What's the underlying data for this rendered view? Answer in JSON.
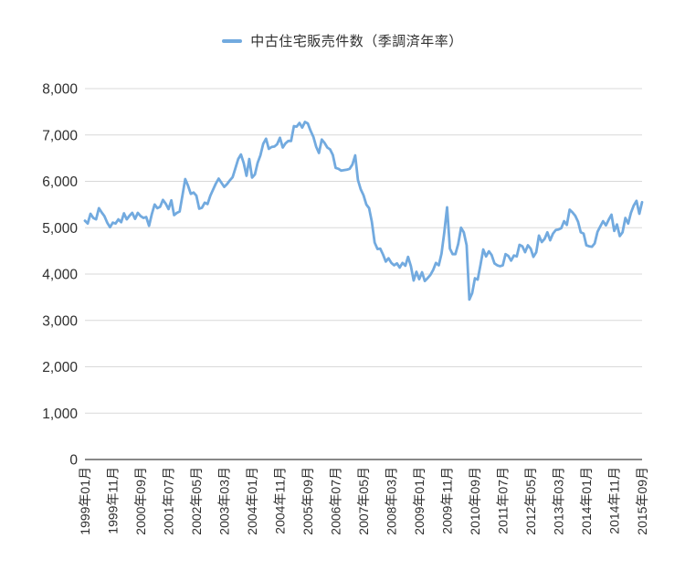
{
  "legend": {
    "label": "中古住宅販売件数（季調済年率）",
    "marker_color": "#72AADF"
  },
  "colors": {
    "line": "#72AADF",
    "grid": "#d9d9d9",
    "axis": "#404040",
    "text": "#2e2e2e",
    "background": "#ffffff"
  },
  "chart_data": {
    "type": "line",
    "title": "",
    "xlabel": "",
    "ylabel": "",
    "x_start": "1999年01月",
    "x_end": "2015年09月",
    "x_interval_months": 1,
    "x_tick_every_months": 10,
    "x_tick_labels": [
      "1999年01月",
      "1999年11月",
      "2000年09月",
      "2001年07月",
      "2002年05月",
      "2003年03月",
      "2004年01月",
      "2004年11月",
      "2005年09月",
      "2006年07月",
      "2007年05月",
      "2008年03月",
      "2009年01月",
      "2009年11月",
      "2010年09月",
      "2011年07月",
      "2012年05月",
      "2013年03月",
      "2014年01月",
      "2014年11月",
      "2015年09月"
    ],
    "ylim": [
      0,
      8000
    ],
    "y_ticks": [
      0,
      1000,
      2000,
      3000,
      4000,
      5000,
      6000,
      7000,
      8000
    ],
    "y_tick_labels": [
      "0",
      "1,000",
      "2,000",
      "3,000",
      "4,000",
      "5,000",
      "6,000",
      "7,000",
      "8,000"
    ],
    "grid": "horizontal",
    "legend_position": "top-center",
    "series": [
      {
        "name": "中古住宅販売件数（季調済年率）",
        "color": "#72AADF",
        "values": [
          5150,
          5090,
          5300,
          5210,
          5180,
          5420,
          5330,
          5250,
          5110,
          5010,
          5110,
          5090,
          5180,
          5120,
          5310,
          5180,
          5260,
          5320,
          5190,
          5320,
          5250,
          5210,
          5230,
          5040,
          5290,
          5500,
          5420,
          5450,
          5600,
          5520,
          5400,
          5590,
          5270,
          5320,
          5350,
          5700,
          6050,
          5910,
          5730,
          5760,
          5690,
          5410,
          5430,
          5540,
          5510,
          5690,
          5820,
          5950,
          6060,
          5970,
          5880,
          5940,
          6020,
          6090,
          6280,
          6480,
          6580,
          6390,
          6120,
          6480,
          6080,
          6150,
          6400,
          6560,
          6810,
          6920,
          6700,
          6740,
          6750,
          6800,
          6940,
          6730,
          6820,
          6870,
          6870,
          7190,
          7180,
          7260,
          7160,
          7280,
          7250,
          7090,
          6960,
          6750,
          6610,
          6900,
          6830,
          6730,
          6690,
          6570,
          6290,
          6270,
          6230,
          6240,
          6250,
          6270,
          6360,
          6560,
          6030,
          5830,
          5700,
          5500,
          5420,
          5130,
          4680,
          4540,
          4550,
          4420,
          4270,
          4340,
          4240,
          4190,
          4230,
          4140,
          4240,
          4180,
          4370,
          4170,
          3860,
          4050,
          3890,
          4040,
          3850,
          3910,
          3980,
          4090,
          4240,
          4190,
          4440,
          4890,
          5440,
          4550,
          4430,
          4430,
          4650,
          5000,
          4900,
          4620,
          3450,
          3590,
          3910,
          3880,
          4200,
          4530,
          4380,
          4490,
          4410,
          4230,
          4190,
          4170,
          4190,
          4430,
          4390,
          4290,
          4400,
          4380,
          4630,
          4600,
          4470,
          4620,
          4550,
          4370,
          4470,
          4830,
          4690,
          4760,
          4900,
          4730,
          4870,
          4950,
          4960,
          4990,
          5140,
          5060,
          5390,
          5330,
          5260,
          5130,
          4900,
          4870,
          4620,
          4600,
          4590,
          4660,
          4910,
          5030,
          5140,
          5050,
          5170,
          5280,
          4930,
          5070,
          4820,
          4900,
          5210,
          5090,
          5320,
          5480,
          5580,
          5300,
          5550
        ]
      }
    ]
  }
}
